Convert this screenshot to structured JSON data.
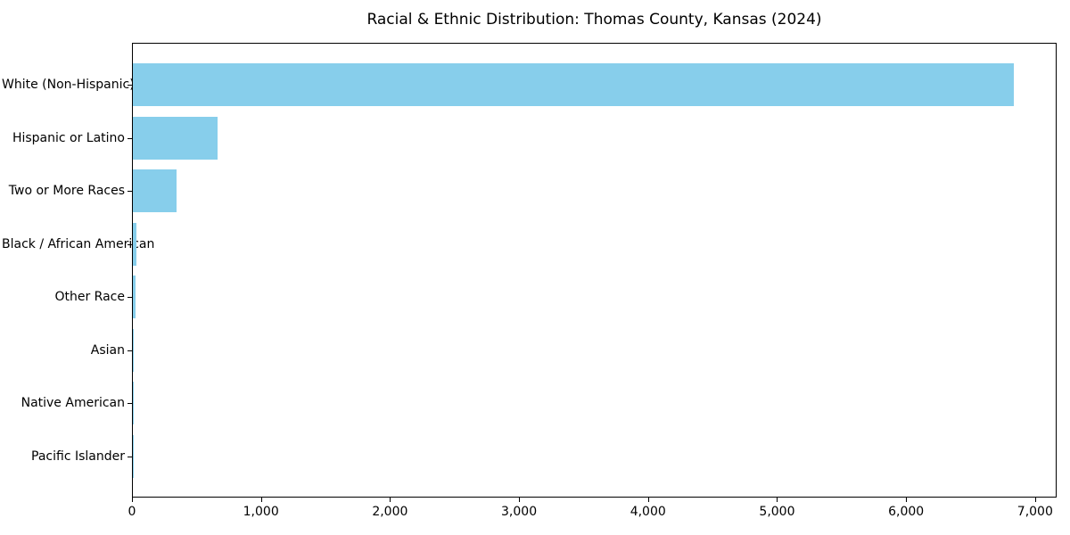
{
  "chart_data": {
    "type": "bar",
    "orientation": "horizontal",
    "title": "Racial & Ethnic Distribution: Thomas County, Kansas (2024)",
    "categories": [
      "White (Non-Hispanic)",
      "Hispanic or Latino",
      "Two or More Races",
      "Black / African American",
      "Other Race",
      "Asian",
      "Native American",
      "Pacific Islander"
    ],
    "values": [
      6827,
      657,
      339,
      30,
      18,
      8,
      4,
      1
    ],
    "xlabel": "",
    "ylabel": "",
    "x_ticks": [
      0,
      1000,
      2000,
      3000,
      4000,
      5000,
      6000,
      7000
    ],
    "x_tick_labels": [
      "0",
      "1,000",
      "2,000",
      "3,000",
      "4,000",
      "5,000",
      "6,000",
      "7,000"
    ],
    "xlim": [
      0,
      7167
    ],
    "bar_color": "#87CEEB",
    "background_color": "#ffffff",
    "spine_color": "#000000",
    "grid": false,
    "legend": null
  }
}
